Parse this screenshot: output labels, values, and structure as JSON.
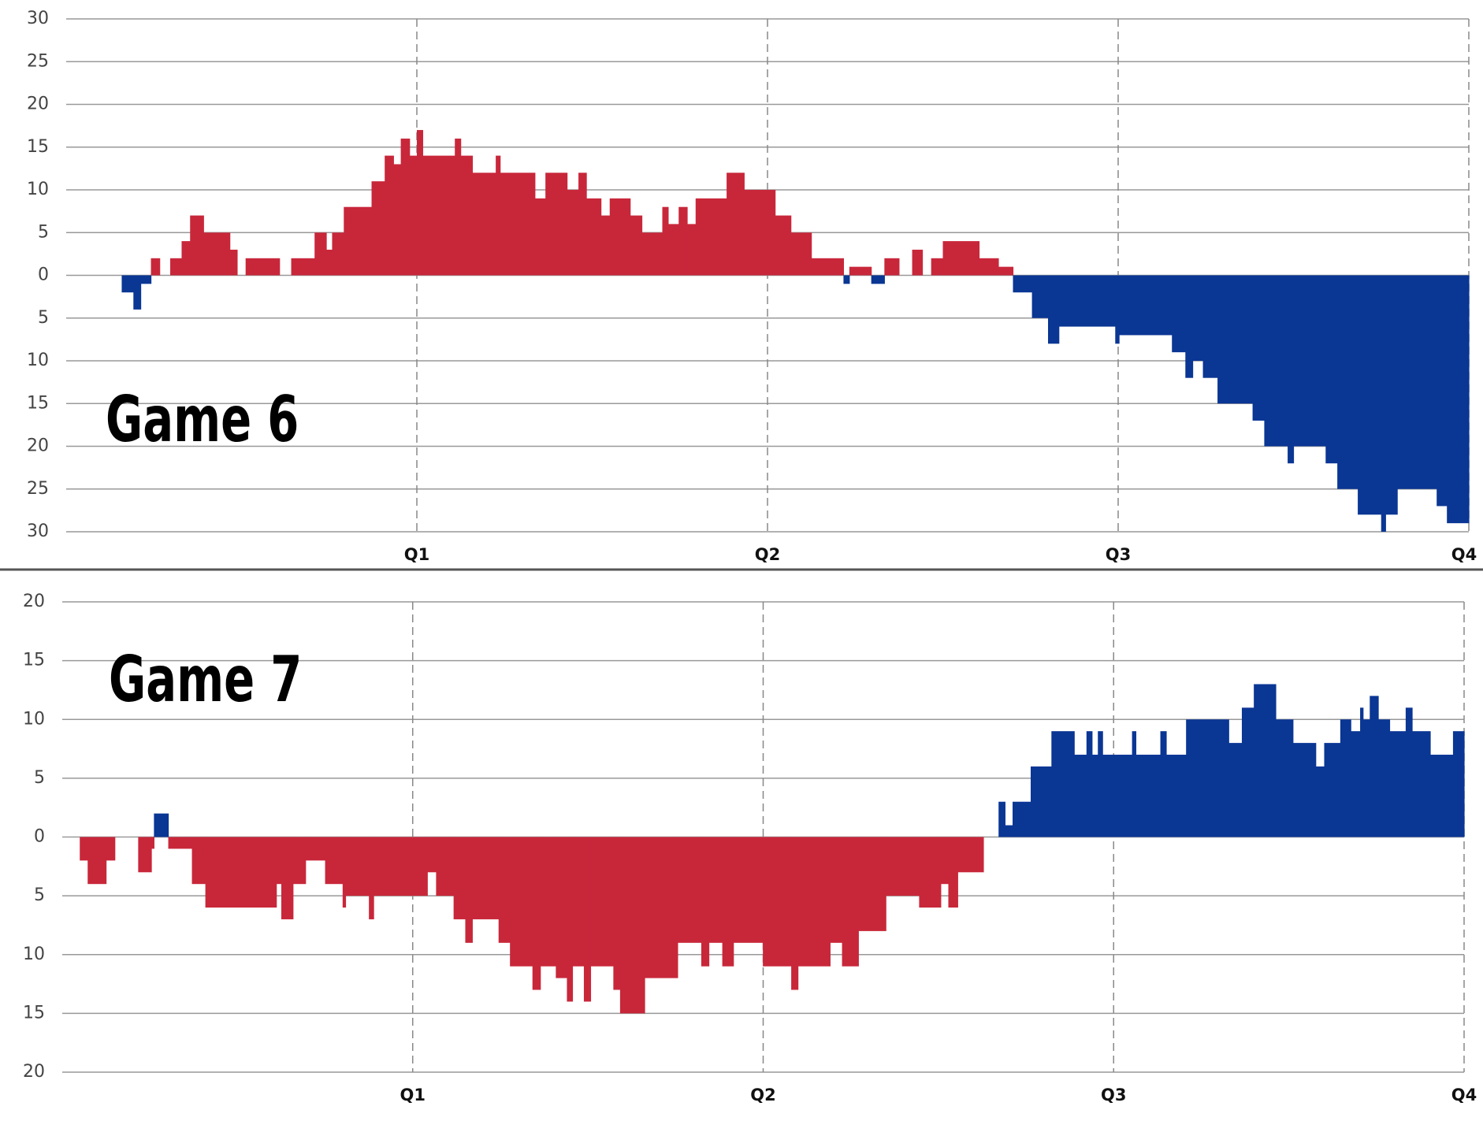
{
  "chart_data": [
    {
      "type": "step",
      "title": "Game 6",
      "x": [
        0,
        1.9,
        2.3,
        2.55,
        2.9,
        3.2,
        3.56,
        3.95,
        4.24,
        4.7,
        5.6,
        5.85,
        6.14,
        7.3,
        7.7,
        8.5,
        8.9,
        9.1,
        9.5,
        10.45,
        10.9,
        11.2,
        11.45,
        11.75,
        12,
        12.2,
        13.3,
        13.5,
        13.9,
        14.7,
        14.85,
        16.04,
        16.4,
        17.14,
        17.53,
        17.8,
        18.3,
        18.6,
        19.3,
        19.7,
        20.4,
        20.6,
        20.96,
        21.25,
        21.54,
        22.6,
        23.2,
        24.26,
        24.8,
        25.5,
        26.6,
        26.8,
        27.55,
        28,
        28.5,
        28.95,
        29.3,
        29.6,
        30,
        31.24,
        31.9,
        32.4,
        33.05,
        33.6,
        33.97,
        35.9,
        36.03,
        37.84,
        38.3,
        38.55,
        38.9,
        39.4,
        40.6,
        41,
        41.8,
        42,
        43.1,
        43.5,
        44.2,
        45,
        45.15,
        45.55,
        46.9,
        47.25
      ],
      "values": [
        0,
        -2,
        -4,
        -1,
        2,
        0,
        2,
        4,
        7,
        5,
        3,
        0,
        2,
        0,
        2,
        5,
        3,
        5,
        8,
        11,
        14,
        13,
        16,
        14,
        17,
        14,
        16,
        14,
        12,
        14,
        12,
        9,
        12,
        10,
        12,
        9,
        7,
        9,
        7,
        5,
        8,
        6,
        8,
        6,
        9,
        12,
        10,
        7,
        5,
        2,
        -1,
        1,
        -1,
        2,
        0,
        3,
        0,
        2,
        4,
        2,
        1,
        -2,
        -5,
        -8,
        -6,
        -8,
        -7,
        -9,
        -12,
        -10,
        -12,
        -15,
        -17,
        -20,
        -22,
        -20,
        -22,
        -25,
        -28,
        -30,
        -28,
        -25,
        -27,
        -29
      ],
      "xlim": [
        0,
        48
      ],
      "xticks": [
        {
          "value": 12,
          "label": "Q1"
        },
        {
          "value": 24,
          "label": "Q2"
        },
        {
          "value": 36,
          "label": "Q3"
        },
        {
          "value": 48,
          "label": "Q4"
        }
      ],
      "ylim": [
        -30,
        30
      ],
      "yticks": [
        30,
        25,
        20,
        15,
        10,
        5,
        0,
        {
          "value": -5,
          "label": "5"
        },
        {
          "value": -10,
          "label": "10"
        },
        {
          "value": -15,
          "label": "15"
        },
        {
          "value": -20,
          "label": "20"
        },
        {
          "value": -25,
          "label": "25"
        },
        {
          "value": -30,
          "label": "30"
        }
      ],
      "positive_color": "#c8273a",
      "negative_color": "#0a3694",
      "grid": true
    },
    {
      "type": "step",
      "title": "Game 7",
      "x": [
        0,
        0.6,
        0.87,
        1.5,
        1.8,
        2.6,
        3.05,
        3.14,
        3.63,
        4.44,
        4.9,
        7.33,
        7.5,
        7.9,
        8.33,
        9,
        9.6,
        9.7,
        10.5,
        10.66,
        12.5,
        12.8,
        13.4,
        13.8,
        14.04,
        14.94,
        15.33,
        16.1,
        16.37,
        16.9,
        17.28,
        17.47,
        17.86,
        18.09,
        18.87,
        19.1,
        19.94,
        21.07,
        21.88,
        22.14,
        22.6,
        22.98,
        23.99,
        24.96,
        25.19,
        26.29,
        26.7,
        27.26,
        28.2,
        29.34,
        30.08,
        30.34,
        30.66,
        31.54,
        32.06,
        32.28,
        32.54,
        33.16,
        33.87,
        34.65,
        35.07,
        35.26,
        35.46,
        35.62,
        36.63,
        36.76,
        37.6,
        37.8,
        38.48,
        39.94,
        40.39,
        40.8,
        41.55,
        42.14,
        42.92,
        43.21,
        43.76,
        44.12,
        44.44,
        44.54,
        44.77,
        45.06,
        45.45,
        46,
        46.22,
        46.84,
        47.62
      ],
      "values": [
        0,
        -2,
        -4,
        -2,
        0,
        -3,
        -1,
        2,
        -1,
        -4,
        -6,
        -4,
        -7,
        -4,
        -2,
        -4,
        -6,
        -5,
        -7,
        -5,
        -3,
        -5,
        -7,
        -9,
        -7,
        -9,
        -11,
        -13,
        -11,
        -12,
        -14,
        -11,
        -14,
        -11,
        -13,
        -15,
        -12,
        -9,
        -11,
        -9,
        -11,
        -9,
        -11,
        -13,
        -11,
        -9,
        -11,
        -8,
        -5,
        -6,
        -4,
        -6,
        -3,
        0,
        3,
        1,
        3,
        6,
        9,
        7,
        9,
        7,
        9,
        7,
        9,
        7,
        9,
        7,
        10,
        8,
        11,
        13,
        10,
        8,
        6,
        8,
        10,
        9,
        11,
        10,
        12,
        10,
        9,
        11,
        9,
        7,
        9
      ],
      "xlim": [
        0,
        48
      ],
      "xticks": [
        {
          "value": 12,
          "label": "Q1"
        },
        {
          "value": 24,
          "label": "Q2"
        },
        {
          "value": 36,
          "label": "Q3"
        },
        {
          "value": 48,
          "label": "Q4"
        }
      ],
      "ylim": [
        -20,
        20
      ],
      "yticks": [
        20,
        15,
        10,
        5,
        0,
        {
          "value": -5,
          "label": "5"
        },
        {
          "value": -10,
          "label": "10"
        },
        {
          "value": -15,
          "label": "15"
        },
        {
          "value": -20,
          "label": "20"
        }
      ],
      "positive_color": "#0a3694",
      "negative_color": "#c8273a",
      "grid": true
    }
  ]
}
